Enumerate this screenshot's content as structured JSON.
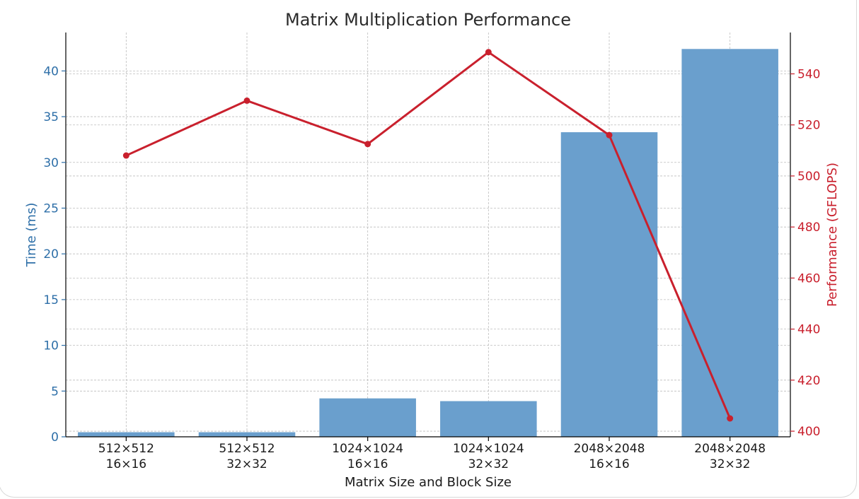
{
  "chart_data": {
    "type": "bar",
    "title": "Matrix Multiplication Performance",
    "xlabel": "Matrix Size and Block Size",
    "categories": [
      [
        "512×512",
        "16×16"
      ],
      [
        "512×512",
        "32×32"
      ],
      [
        "1024×1024",
        "16×16"
      ],
      [
        "1024×1024",
        "32×32"
      ],
      [
        "2048×2048",
        "16×16"
      ],
      [
        "2048×2048",
        "32×32"
      ]
    ],
    "series": [
      {
        "name": "Time (ms)",
        "type": "bar",
        "axis": "left",
        "values": [
          0.5,
          0.5,
          4.2,
          3.9,
          33.3,
          42.4
        ]
      },
      {
        "name": "Performance (GFLOPS)",
        "type": "line",
        "axis": "right",
        "values": [
          508,
          529.5,
          512.5,
          548.5,
          516,
          405
        ]
      }
    ],
    "left_axis": {
      "label": "Time (ms)",
      "range": [
        0,
        44.2
      ],
      "ticks": [
        0,
        5,
        10,
        15,
        20,
        25,
        30,
        35,
        40
      ]
    },
    "right_axis": {
      "label": "Performance (GFLOPS)",
      "range": [
        397.8,
        556.2
      ],
      "ticks": [
        400,
        420,
        440,
        460,
        480,
        500,
        520,
        540
      ]
    },
    "grid": true,
    "colors": {
      "bar": "#6a9fcd",
      "line": "#c9202d",
      "left_axis_text": "#2e6fa8",
      "right_axis_text": "#c9202d",
      "grid": "#bdbdbd",
      "title": "#2b2b2b",
      "tick_text": "#1a1a1a"
    }
  }
}
